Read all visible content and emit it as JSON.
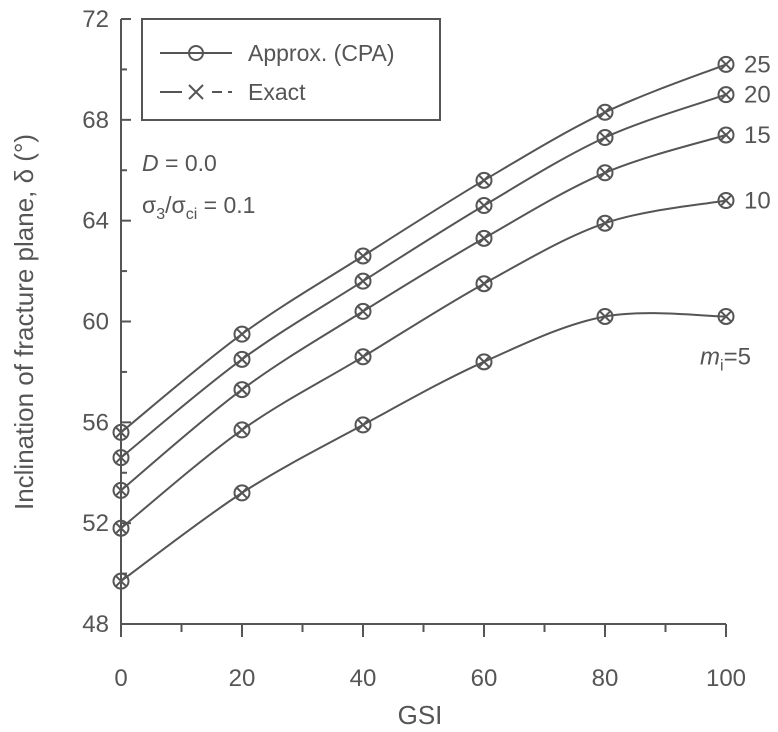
{
  "chart_data": {
    "type": "line",
    "xlabel": "GSI",
    "ylabel": "Inclination of fracture plane, δ (°)",
    "xlim": [
      0,
      100
    ],
    "ylim": [
      48,
      72
    ],
    "x_ticks": [
      0,
      20,
      40,
      60,
      80,
      100
    ],
    "y_ticks": [
      48,
      52,
      56,
      60,
      64,
      68,
      72
    ],
    "grid": false,
    "legend": {
      "position": "top-left",
      "entries": [
        {
          "label": "Approx. (CPA)",
          "style": "solid-circle"
        },
        {
          "label": "Exact",
          "style": "dashed-x"
        }
      ]
    },
    "annotations": {
      "d_var": "D",
      "d_value": " = 0.0",
      "sigma_main": "σ",
      "sigma_sub1": "3",
      "sigma_div": "/σ",
      "sigma_sub2": "ci",
      "sigma_value": " = 0.1"
    },
    "x": [
      0,
      20,
      40,
      60,
      80,
      100
    ],
    "series": [
      {
        "label": "25",
        "values": [
          55.6,
          59.5,
          62.6,
          65.6,
          68.3,
          70.2
        ]
      },
      {
        "label": "20",
        "values": [
          54.6,
          58.5,
          61.6,
          64.6,
          67.3,
          69.0
        ]
      },
      {
        "label": "15",
        "values": [
          53.3,
          57.3,
          60.4,
          63.3,
          65.9,
          67.4
        ]
      },
      {
        "label": "10",
        "values": [
          51.8,
          55.7,
          58.6,
          61.5,
          63.9,
          64.8
        ]
      },
      {
        "label": "5",
        "label_prefix": "m",
        "label_sub": "i",
        "label_suffix": "=5",
        "values": [
          49.7,
          53.2,
          55.9,
          58.4,
          60.2,
          60.2
        ]
      }
    ],
    "colors": {
      "line": "#555555",
      "text": "#555555"
    }
  }
}
